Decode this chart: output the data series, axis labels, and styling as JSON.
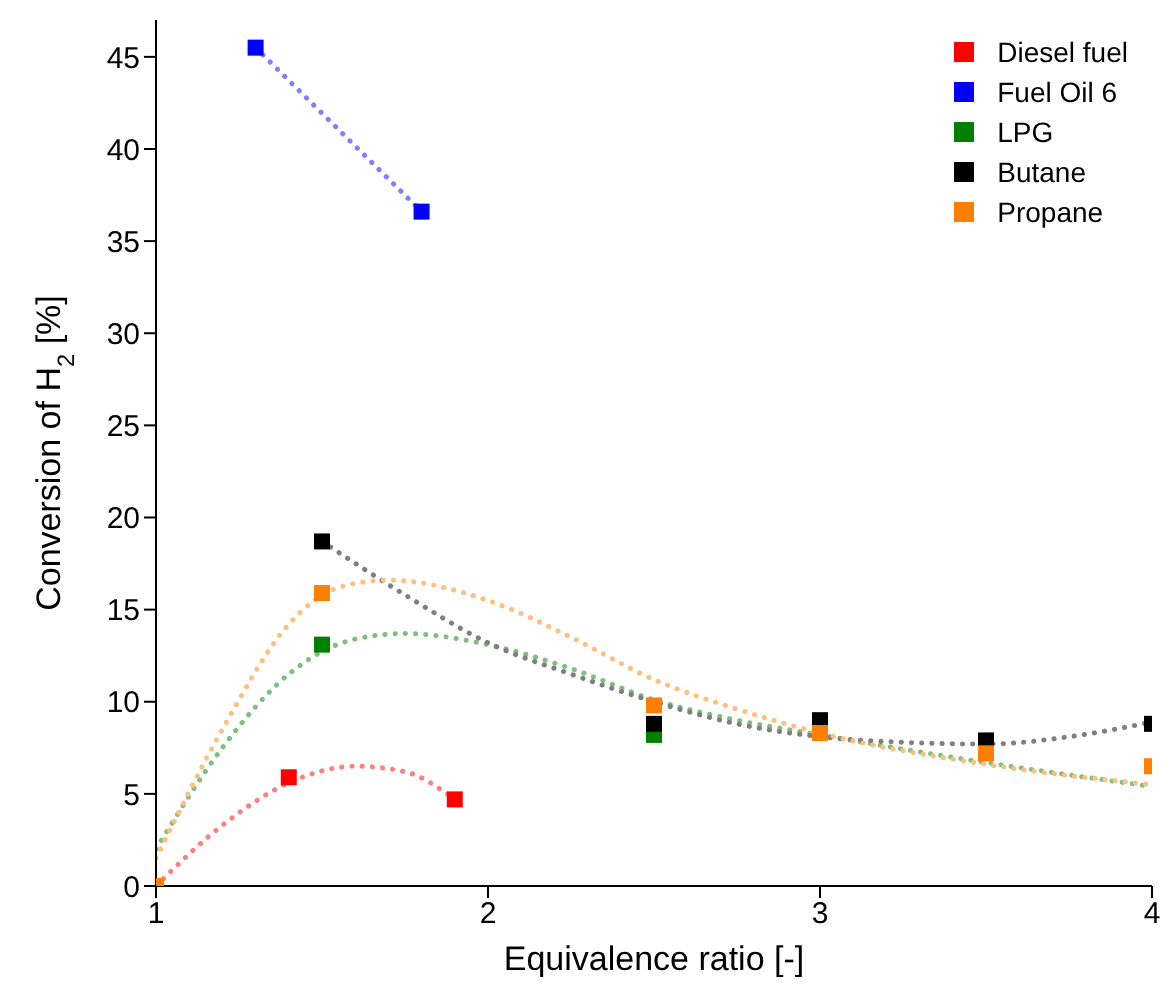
{
  "chart_data": {
    "type": "scatter",
    "xlabel": "Equivalence ratio [-]",
    "ylabel": "Conversion of H$_{2}$ [%]",
    "xlim": [
      1,
      4
    ],
    "xticks": [
      1,
      2,
      3,
      4
    ],
    "ylim": [
      0,
      47
    ],
    "yticks": [
      0,
      5,
      10,
      15,
      20,
      25,
      30,
      35,
      40,
      45
    ],
    "grid": false,
    "legend": "top right",
    "marker": "square",
    "series": [
      {
        "name": "Diesel fuel",
        "color": "#ff0000",
        "x": [
          1.4,
          1.9
        ],
        "values": [
          5.9,
          4.7
        ]
      },
      {
        "name": "Fuel Oil 6",
        "color": "#0000ff",
        "x": [
          1.3,
          1.8
        ],
        "values": [
          45.5,
          36.6
        ]
      },
      {
        "name": "LPG",
        "color": "#008000",
        "x": [
          1.5,
          2.5
        ],
        "values": [
          13.1,
          8.2
        ]
      },
      {
        "name": "Butane",
        "color": "#000000",
        "x": [
          1.5,
          2.5,
          3,
          3.5,
          4
        ],
        "values": [
          18.7,
          8.8,
          9.0,
          7.9,
          8.8
        ]
      },
      {
        "name": "Propane",
        "color": "#ff8000",
        "x": [
          1,
          1.5,
          2.5,
          3,
          3.5,
          4
        ],
        "values": [
          0,
          15.9,
          9.8,
          8.3,
          7.2,
          6.5
        ]
      },
      {
        "type": "line",
        "line_style": "dotted",
        "marker": "none",
        "color": "#ff7f7f",
        "x": [
          1,
          1.2,
          1.4,
          1.6,
          1.75,
          1.9
        ],
        "values": [
          0,
          3.3,
          5.6,
          6.5,
          6.2,
          4.7
        ]
      },
      {
        "type": "line",
        "line_style": "dotted",
        "marker": "none",
        "color": "#7f7fff",
        "x": [
          1.3,
          1.8
        ],
        "values": [
          45.5,
          36.6
        ]
      },
      {
        "type": "line",
        "line_style": "dotted",
        "marker": "none",
        "color": "#7fbf7f",
        "x": [
          1,
          1.2,
          1.4,
          1.6,
          1.75,
          2,
          2.25,
          2.5,
          2.75,
          3,
          3.5,
          4
        ],
        "values": [
          2.0,
          7.5,
          11.5,
          13.4,
          13.7,
          13.1,
          11.8,
          10.1,
          9.0,
          8.2,
          6.7,
          5.4
        ]
      },
      {
        "type": "line",
        "line_style": "dotted",
        "marker": "none",
        "color": "#7f7f7f",
        "x": [
          1.5,
          1.75,
          2,
          2.25,
          2.5,
          2.75,
          3,
          3.25,
          3.5,
          3.75,
          4
        ],
        "values": [
          18.7,
          15.8,
          13.2,
          11.5,
          10.0,
          8.8,
          8.1,
          7.8,
          7.7,
          8.1,
          8.9
        ]
      },
      {
        "type": "line",
        "line_style": "dotted",
        "marker": "none",
        "color": "#ffbf7f",
        "x": [
          1,
          1.2,
          1.4,
          1.55,
          1.7,
          2,
          2.25,
          2.5,
          2.75,
          3,
          3.5,
          4
        ],
        "values": [
          1.5,
          8.5,
          14.2,
          16.2,
          16.6,
          15.5,
          13.5,
          11.2,
          9.6,
          8.3,
          6.6,
          5.5
        ]
      }
    ]
  }
}
